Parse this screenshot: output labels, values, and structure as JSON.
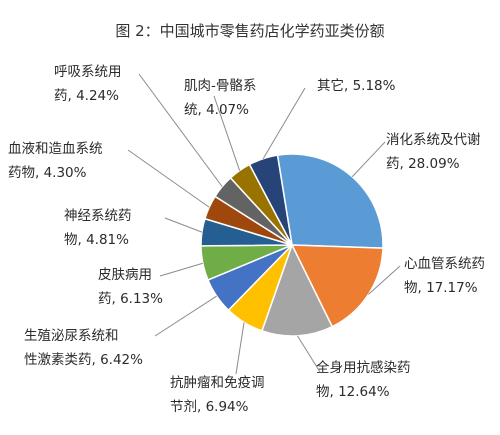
{
  "chart_data": {
    "type": "pie",
    "title": "图 2：中国城市零售药店化学药亚类份额",
    "slices": [
      {
        "name": "消化系统及代谢药",
        "value": 28.09,
        "display": [
          "消化系统及代谢",
          "药, 28.09%"
        ],
        "color": "#5b9bd5"
      },
      {
        "name": "心血管系统药物",
        "value": 17.17,
        "display": [
          "心血管系统药",
          "物, 17.17%"
        ],
        "color": "#ed7d31"
      },
      {
        "name": "全身用抗感染药物",
        "value": 12.64,
        "display": [
          "全身用抗感染药",
          "物, 12.64%"
        ],
        "color": "#a5a5a5"
      },
      {
        "name": "抗肿瘤和免疫调节剂",
        "value": 6.94,
        "display": [
          "抗肿瘤和免疫调",
          "节剂, 6.94%"
        ],
        "color": "#ffc000"
      },
      {
        "name": "生殖泌尿系统和性激素类药",
        "value": 6.42,
        "display": [
          "生殖泌尿系统和",
          "性激素类药, 6.42%"
        ],
        "color": "#4472c4"
      },
      {
        "name": "皮肤病用药",
        "value": 6.13,
        "display": [
          "皮肤病用",
          "药, 6.13%"
        ],
        "color": "#70ad47"
      },
      {
        "name": "神经系统药物",
        "value": 4.81,
        "display": [
          "神经系统药",
          "物, 4.81%"
        ],
        "color": "#255e91"
      },
      {
        "name": "血液和造血系统药物",
        "value": 4.3,
        "display": [
          "血液和造血系统",
          "药物, 4.30%"
        ],
        "color": "#9e480e"
      },
      {
        "name": "呼吸系统用药",
        "value": 4.24,
        "display": [
          "呼吸系统用",
          "药, 4.24%"
        ],
        "color": "#636363"
      },
      {
        "name": "肌肉-骨骼系统",
        "value": 4.07,
        "display": [
          "肌肉-骨骼系",
          "统, 4.07%"
        ],
        "color": "#997300"
      },
      {
        "name": "其它",
        "value": 5.18,
        "display": [
          "其它, 5.18%"
        ],
        "color": "#264478"
      }
    ]
  }
}
